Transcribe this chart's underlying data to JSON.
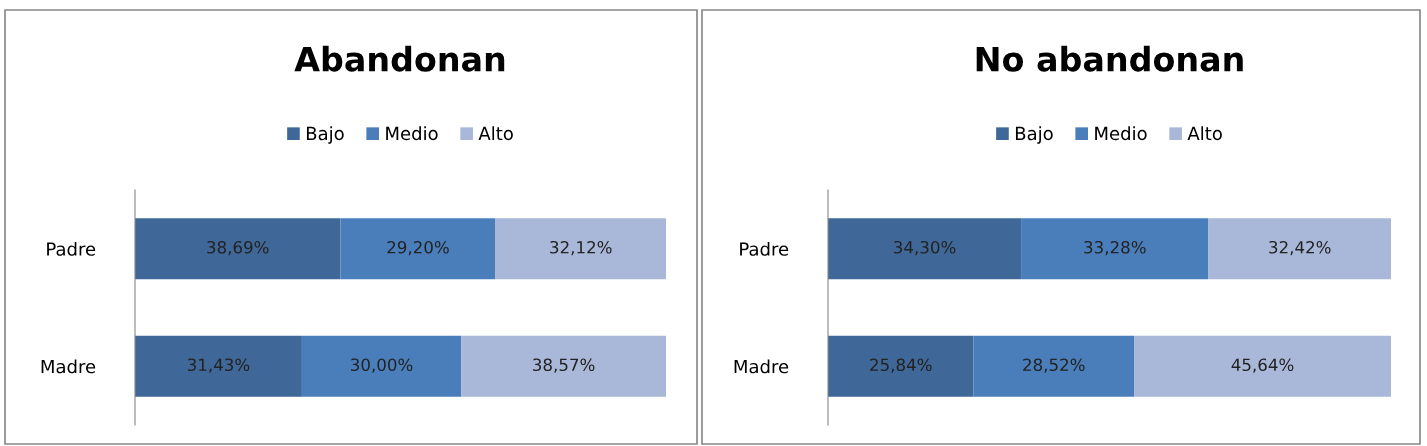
{
  "chart_data": [
    {
      "type": "bar",
      "orientation": "horizontal",
      "stacked": true,
      "title": "Abandonan",
      "categories": [
        "Padre",
        "Madre"
      ],
      "xlim": [
        0,
        100
      ],
      "tick_labels": "y",
      "legend": "top",
      "grid": false,
      "series": [
        {
          "name": "Bajo",
          "color": "#3f6797",
          "values": [
            38.69,
            31.43
          ],
          "value_labels": [
            "38,69%",
            "31,43%"
          ]
        },
        {
          "name": "Medio",
          "color": "#4a7ebb",
          "values": [
            29.2,
            30.0
          ],
          "value_labels": [
            "29,20%",
            "30,00%"
          ]
        },
        {
          "name": "Alto",
          "color": "#a9b8d8",
          "values": [
            32.12,
            38.57
          ],
          "value_labels": [
            "32,12%",
            "38,57%"
          ]
        }
      ]
    },
    {
      "type": "bar",
      "orientation": "horizontal",
      "stacked": true,
      "title": "No abandonan",
      "categories": [
        "Padre",
        "Madre"
      ],
      "xlim": [
        0,
        100
      ],
      "tick_labels": "y",
      "legend": "top",
      "grid": false,
      "series": [
        {
          "name": "Bajo",
          "color": "#3f6797",
          "values": [
            34.3,
            25.84
          ],
          "value_labels": [
            "34,30%",
            "25,84%"
          ]
        },
        {
          "name": "Medio",
          "color": "#4a7ebb",
          "values": [
            33.28,
            28.52
          ],
          "value_labels": [
            "33,28%",
            "28,52%"
          ]
        },
        {
          "name": "Alto",
          "color": "#a9b8d8",
          "values": [
            32.42,
            45.64
          ],
          "value_labels": [
            "32,42%",
            "45,64%"
          ]
        }
      ]
    }
  ]
}
